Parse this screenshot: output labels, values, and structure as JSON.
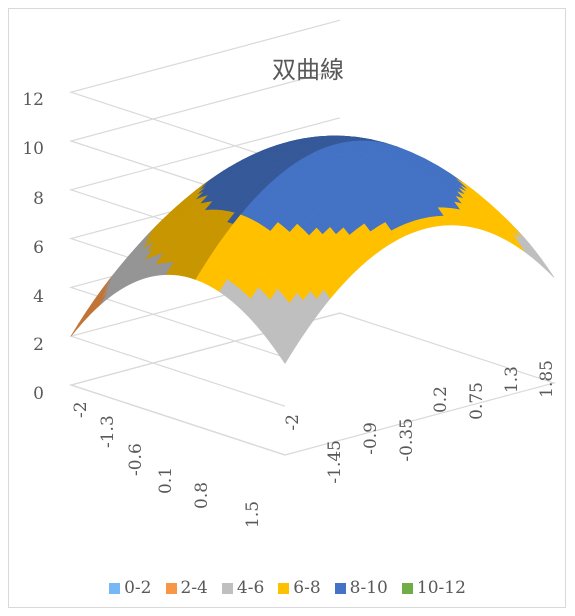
{
  "chart_data": {
    "type": "surface",
    "title": "双曲線",
    "z_ticks": [
      "0",
      "2",
      "4",
      "6",
      "8",
      "10",
      "12"
    ],
    "zlim": [
      0,
      12
    ],
    "x_ticks": [
      "-2",
      "-1.3",
      "-0.6",
      "0.1",
      "0.8",
      "1.5"
    ],
    "y_ticks": [
      "-2",
      "-1.45",
      "-0.9",
      "-0.35",
      "0.2",
      "0.75",
      "1.3",
      "1.85"
    ],
    "bands": [
      {
        "name": "0-2",
        "color": "#75b8f5"
      },
      {
        "name": "2-4",
        "color": "#f79646"
      },
      {
        "name": "4-6",
        "color": "#bfbfbf"
      },
      {
        "name": "6-8",
        "color": "#ffc000"
      },
      {
        "name": "8-10",
        "color": "#4472c4"
      },
      {
        "name": "10-12",
        "color": "#70ad47"
      }
    ],
    "surface_function": "z = 10 - x^2 - y^2 (clipped at 0)",
    "peak_z": 10,
    "grid": true,
    "legend_position": "bottom"
  }
}
